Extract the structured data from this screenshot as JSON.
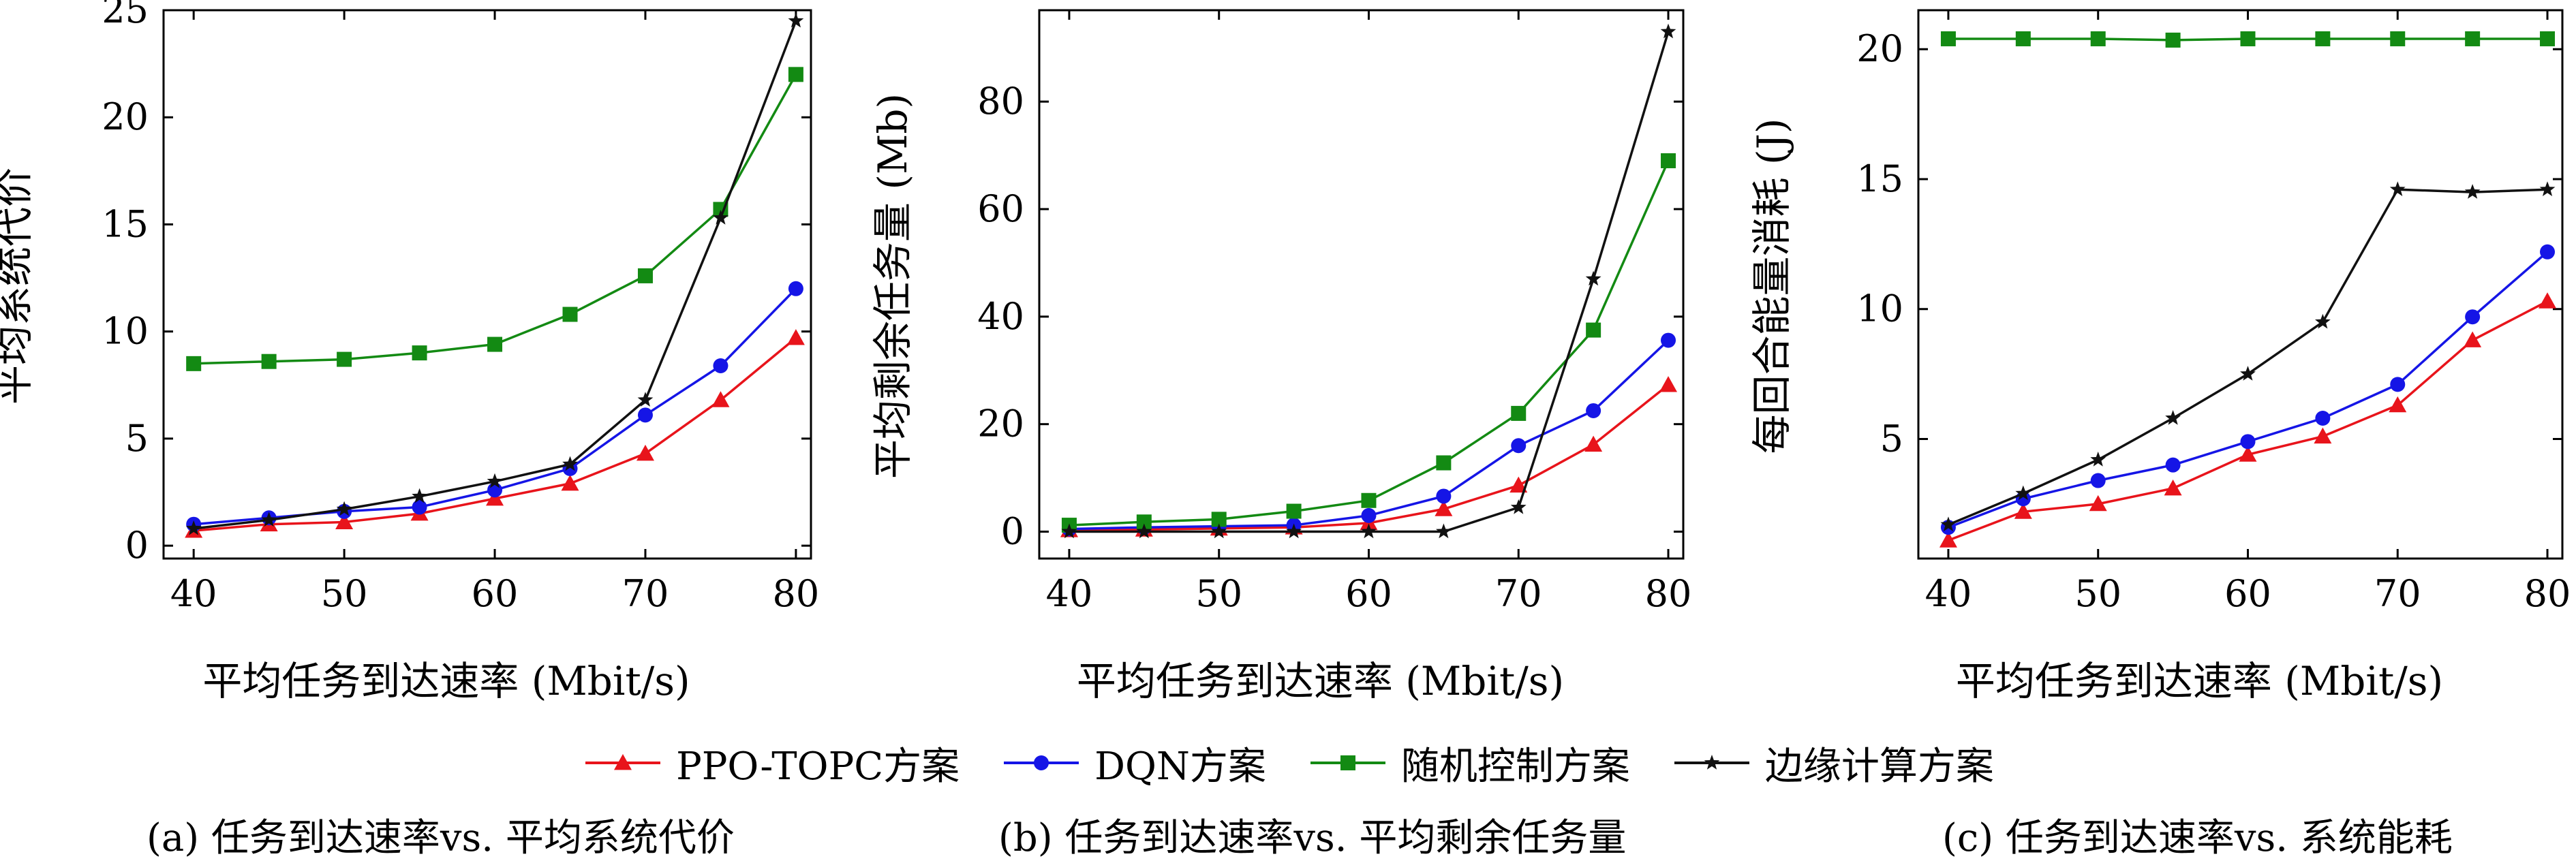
{
  "x_axis_label": "平均任务到达速率 (Mbit/s)",
  "series_names": [
    "PPO-TOPC方案",
    "DQN方案",
    "随机控制方案",
    "边缘计算方案"
  ],
  "series_colors": [
    "#e8141b",
    "#1515e6",
    "#138a13",
    "#111111"
  ],
  "series_markers": [
    "triangle",
    "circle",
    "square",
    "star"
  ],
  "legend": {
    "items": [
      {
        "label": "PPO-TOPC方案"
      },
      {
        "label": "DQN方案"
      },
      {
        "label": "随机控制方案"
      },
      {
        "label": "边缘计算方案"
      }
    ]
  },
  "captions": {
    "a": "(a) 任务到达速率vs. 平均系统代价",
    "b": "(b) 任务到达速率vs. 平均剩余任务量",
    "c": "(c) 任务到达速率vs. 系统能耗"
  },
  "chart_data": [
    {
      "type": "line",
      "caption": "(a) 任务到达速率vs. 平均系统代价",
      "xlabel": "平均任务到达速率 (Mbit/s)",
      "ylabel": "平均系统代价",
      "x": [
        40,
        45,
        50,
        55,
        60,
        65,
        70,
        75,
        80
      ],
      "xlim": [
        38,
        81
      ],
      "ylim": [
        -0.6,
        25
      ],
      "xticks": [
        40,
        50,
        60,
        70,
        80
      ],
      "yticks": [
        0,
        5,
        10,
        15,
        20,
        25
      ],
      "grid": false,
      "series": [
        {
          "name": "PPO-TOPC方案",
          "values": [
            0.7,
            1.0,
            1.1,
            1.5,
            2.2,
            2.9,
            4.3,
            6.8,
            9.7
          ]
        },
        {
          "name": "DQN方案",
          "values": [
            1.0,
            1.3,
            1.6,
            1.8,
            2.6,
            3.6,
            6.1,
            8.4,
            12.0
          ]
        },
        {
          "name": "随机控制方案",
          "values": [
            8.5,
            8.6,
            8.7,
            9.0,
            9.4,
            10.8,
            12.6,
            15.7,
            22.0
          ]
        },
        {
          "name": "边缘计算方案",
          "values": [
            0.8,
            1.2,
            1.7,
            2.3,
            3.0,
            3.8,
            6.8,
            15.3,
            24.5
          ]
        }
      ]
    },
    {
      "type": "line",
      "caption": "(b) 任务到达速率vs. 平均剩余任务量",
      "xlabel": "平均任务到达速率 (Mbit/s)",
      "ylabel": "平均剩余任务量 (Mb)",
      "x": [
        40,
        45,
        50,
        55,
        60,
        65,
        70,
        75,
        80
      ],
      "xlim": [
        38,
        81
      ],
      "ylim": [
        -5,
        97
      ],
      "xticks": [
        40,
        50,
        60,
        70,
        80
      ],
      "yticks": [
        0,
        20,
        40,
        60,
        80
      ],
      "grid": false,
      "series": [
        {
          "name": "PPO-TOPC方案",
          "values": [
            0.3,
            0.4,
            0.6,
            0.8,
            1.6,
            4.2,
            8.6,
            16.2,
            27.3
          ]
        },
        {
          "name": "DQN方案",
          "values": [
            0.5,
            0.8,
            1.0,
            1.2,
            3.0,
            6.6,
            16.0,
            22.5,
            35.6
          ]
        },
        {
          "name": "随机控制方案",
          "values": [
            1.2,
            1.8,
            2.3,
            3.8,
            5.8,
            12.8,
            22.0,
            37.5,
            69.0
          ]
        },
        {
          "name": "边缘计算方案",
          "values": [
            0,
            0,
            0,
            0,
            0,
            0,
            4.5,
            47.0,
            93.0
          ]
        }
      ]
    },
    {
      "type": "line",
      "caption": "(c) 任务到达速率vs. 系统能耗",
      "xlabel": "平均任务到达速率 (Mbit/s)",
      "ylabel": "每回合能量消耗 (J)",
      "x": [
        40,
        45,
        50,
        55,
        60,
        65,
        70,
        75,
        80
      ],
      "xlim": [
        38,
        81
      ],
      "ylim": [
        0.4,
        21.5
      ],
      "xticks": [
        40,
        50,
        60,
        70,
        80
      ],
      "yticks": [
        5,
        10,
        15,
        20
      ],
      "grid": false,
      "series": [
        {
          "name": "PPO-TOPC方案",
          "values": [
            1.1,
            2.2,
            2.5,
            3.1,
            4.4,
            5.1,
            6.3,
            8.8,
            10.3
          ]
        },
        {
          "name": "DQN方案",
          "values": [
            1.6,
            2.7,
            3.4,
            4.0,
            4.9,
            5.8,
            7.1,
            9.7,
            12.2
          ]
        },
        {
          "name": "随机控制方案",
          "values": [
            20.4,
            20.4,
            20.4,
            20.35,
            20.4,
            20.4,
            20.4,
            20.4,
            20.4
          ]
        },
        {
          "name": "边缘计算方案",
          "values": [
            1.7,
            2.9,
            4.2,
            5.8,
            7.5,
            9.5,
            14.6,
            14.5,
            14.6
          ]
        }
      ]
    }
  ]
}
